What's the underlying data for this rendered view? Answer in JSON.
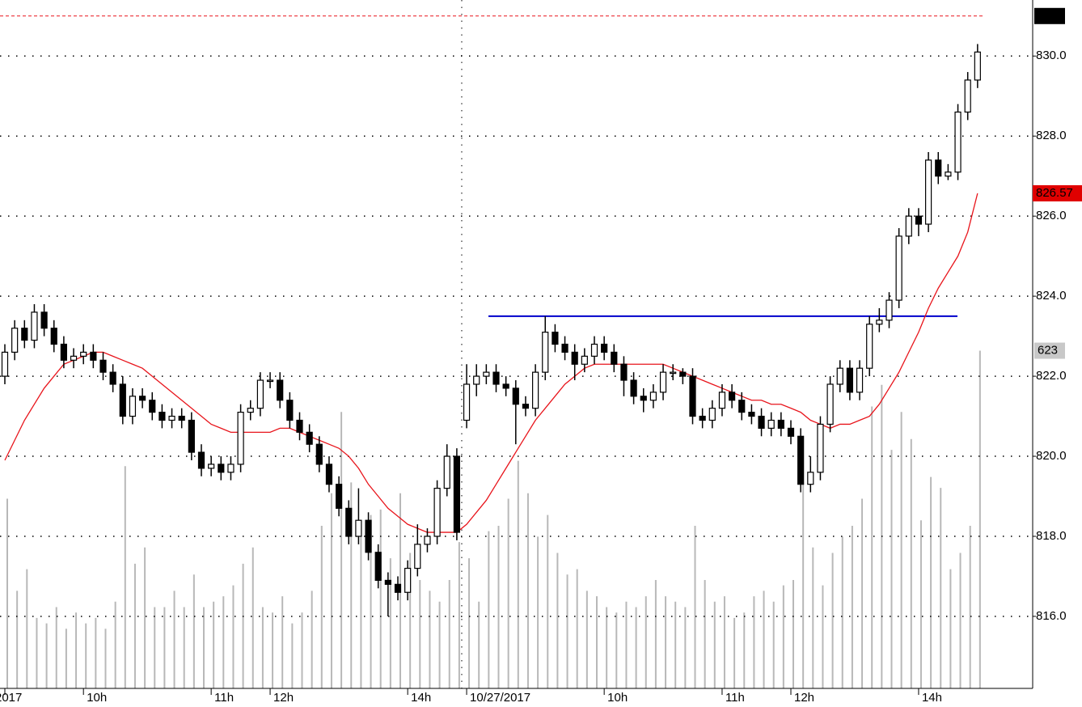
{
  "chart_data": {
    "type": "candlestick",
    "x": [
      "2017",
      null,
      null,
      null,
      null,
      null,
      null,
      null,
      "10h",
      null,
      null,
      null,
      null,
      null,
      null,
      null,
      null,
      null,
      null,
      null,
      null,
      "11h",
      null,
      null,
      null,
      null,
      null,
      "12h",
      null,
      null,
      null,
      null,
      null,
      null,
      null,
      null,
      null,
      null,
      null,
      null,
      null,
      "14h",
      null,
      null,
      null,
      null,
      null,
      "10/27/2017",
      null,
      null,
      null,
      null,
      null,
      null,
      null,
      null,
      null,
      null,
      null,
      null,
      null,
      "10h",
      null,
      null,
      null,
      null,
      null,
      null,
      null,
      null,
      null,
      null,
      null,
      "11h",
      null,
      null,
      null,
      null,
      null,
      null,
      "12h",
      null,
      null,
      null,
      null,
      null,
      null,
      null,
      null,
      null,
      null,
      null,
      null,
      "14h",
      null,
      null,
      null,
      null,
      null,
      null
    ],
    "open": [
      822.0,
      822.6,
      823.2,
      822.9,
      823.6,
      823.2,
      822.8,
      822.4,
      822.5,
      822.6,
      822.4,
      822.1,
      821.8,
      821.0,
      821.5,
      821.4,
      821.1,
      820.9,
      821.0,
      820.9,
      820.1,
      819.7,
      819.8,
      819.6,
      819.8,
      821.1,
      821.2,
      821.9,
      821.9,
      821.4,
      820.9,
      820.6,
      820.3,
      819.8,
      819.3,
      818.7,
      818.0,
      818.4,
      817.6,
      816.9,
      816.8,
      816.6,
      817.2,
      817.8,
      818.0,
      819.2,
      820.0,
      820.9,
      821.8,
      822.0,
      822.1,
      821.8,
      821.7,
      821.3,
      821.2,
      822.1,
      823.1,
      822.8,
      822.6,
      822.3,
      822.5,
      822.8,
      822.6,
      822.3,
      821.9,
      821.5,
      821.4,
      821.6,
      822.1,
      822.1,
      822.0,
      821.0,
      820.9,
      821.2,
      821.6,
      821.4,
      821.1,
      821.0,
      820.7,
      820.9,
      820.7,
      820.5,
      819.3,
      819.6,
      820.8,
      821.8,
      822.2,
      821.6,
      822.2,
      823.3,
      823.4,
      823.9,
      825.5,
      826.0,
      825.8,
      827.4,
      827.0,
      827.1,
      828.6,
      829.4
    ],
    "high": [
      822.8,
      823.4,
      823.4,
      823.8,
      823.8,
      823.4,
      823.0,
      822.7,
      822.8,
      822.8,
      822.6,
      822.3,
      822.0,
      821.7,
      821.7,
      821.6,
      821.3,
      821.2,
      821.2,
      821.1,
      820.3,
      820.0,
      820.0,
      820.0,
      821.3,
      821.4,
      822.1,
      822.1,
      822.1,
      821.6,
      821.1,
      820.8,
      820.5,
      820.0,
      819.5,
      818.9,
      819.2,
      818.6,
      817.8,
      817.1,
      817.0,
      817.4,
      818.3,
      818.2,
      819.4,
      820.3,
      820.2,
      822.3,
      822.3,
      822.3,
      822.3,
      822.0,
      821.9,
      821.5,
      822.3,
      823.5,
      823.3,
      823.0,
      822.8,
      822.7,
      823.0,
      823.0,
      822.8,
      822.5,
      822.1,
      821.7,
      821.8,
      822.3,
      822.3,
      822.2,
      822.2,
      821.2,
      821.4,
      821.8,
      821.8,
      821.6,
      821.3,
      821.2,
      821.1,
      821.1,
      820.9,
      820.7,
      820.0,
      821.0,
      822.0,
      822.4,
      822.4,
      822.4,
      823.5,
      823.7,
      824.1,
      825.7,
      826.2,
      826.2,
      827.6,
      827.6,
      827.3,
      828.8,
      829.6,
      830.3
    ],
    "low": [
      821.8,
      822.4,
      822.7,
      822.7,
      823.0,
      822.6,
      822.2,
      822.2,
      822.3,
      822.2,
      821.9,
      821.6,
      820.8,
      820.8,
      821.2,
      820.9,
      820.7,
      820.7,
      820.7,
      819.9,
      819.5,
      819.5,
      819.4,
      819.4,
      819.6,
      820.9,
      821.0,
      821.7,
      821.2,
      820.7,
      820.4,
      820.1,
      819.6,
      819.1,
      818.5,
      817.8,
      817.8,
      817.4,
      816.7,
      816.0,
      816.4,
      816.4,
      817.0,
      817.6,
      817.8,
      819.0,
      817.9,
      820.7,
      821.5,
      821.8,
      821.6,
      821.5,
      820.3,
      821.0,
      821.0,
      821.9,
      822.6,
      822.4,
      821.9,
      822.1,
      822.3,
      822.4,
      822.1,
      821.5,
      821.3,
      821.1,
      821.2,
      821.4,
      821.9,
      821.8,
      820.8,
      820.7,
      820.7,
      821.0,
      821.2,
      820.9,
      820.8,
      820.5,
      820.5,
      820.5,
      820.3,
      819.1,
      819.1,
      819.4,
      820.6,
      821.6,
      821.4,
      821.4,
      822.0,
      823.1,
      823.2,
      823.7,
      825.3,
      825.5,
      825.6,
      826.8,
      826.9,
      826.9,
      828.4,
      829.2
    ],
    "close": [
      822.6,
      823.2,
      822.9,
      823.6,
      823.2,
      822.8,
      822.4,
      822.5,
      822.6,
      822.4,
      822.1,
      821.8,
      821.0,
      821.5,
      821.4,
      821.1,
      820.9,
      821.0,
      820.9,
      820.1,
      819.7,
      819.8,
      819.6,
      819.8,
      821.1,
      821.2,
      821.9,
      821.9,
      821.4,
      820.9,
      820.6,
      820.3,
      819.8,
      819.3,
      818.7,
      818.0,
      818.4,
      817.6,
      816.9,
      816.8,
      816.6,
      817.2,
      817.8,
      818.0,
      819.2,
      820.0,
      818.1,
      821.8,
      822.0,
      822.1,
      821.8,
      821.7,
      821.3,
      821.2,
      822.1,
      823.1,
      822.8,
      822.6,
      822.3,
      822.5,
      822.8,
      822.6,
      822.3,
      821.9,
      821.5,
      821.4,
      821.6,
      822.1,
      822.1,
      822.0,
      821.0,
      820.9,
      821.2,
      821.6,
      821.4,
      821.1,
      821.0,
      820.7,
      820.9,
      820.7,
      820.5,
      819.3,
      819.6,
      820.8,
      821.8,
      822.2,
      821.6,
      822.2,
      823.3,
      823.4,
      823.9,
      825.5,
      826.0,
      825.8,
      827.4,
      827.0,
      827.1,
      828.6,
      829.4,
      830.1
    ],
    "up_color": "#ffffff",
    "down_color": "#000000",
    "moving_average": {
      "color": "#e8141b",
      "values": [
        819.9,
        820.4,
        820.9,
        821.3,
        821.7,
        822.0,
        822.3,
        822.4,
        822.5,
        822.6,
        822.6,
        822.5,
        822.4,
        822.3,
        822.2,
        822.0,
        821.8,
        821.6,
        821.4,
        821.2,
        821.0,
        820.8,
        820.7,
        820.6,
        820.6,
        820.6,
        820.6,
        820.6,
        820.7,
        820.7,
        820.6,
        820.5,
        820.4,
        820.3,
        820.2,
        820.0,
        819.7,
        819.3,
        819.0,
        818.7,
        818.5,
        818.3,
        818.2,
        818.1,
        818.1,
        818.1,
        818.1,
        818.3,
        818.6,
        818.9,
        819.3,
        819.7,
        820.1,
        820.5,
        820.9,
        821.2,
        821.5,
        821.8,
        822.0,
        822.2,
        822.3,
        822.3,
        822.3,
        822.3,
        822.3,
        822.3,
        822.3,
        822.3,
        822.2,
        822.1,
        822.0,
        821.9,
        821.8,
        821.7,
        821.6,
        821.5,
        821.4,
        821.4,
        821.3,
        821.3,
        821.2,
        821.1,
        820.9,
        820.8,
        820.7,
        820.8,
        820.8,
        820.9,
        821.0,
        821.3,
        821.7,
        822.1,
        822.6,
        823.1,
        823.7,
        824.2,
        824.6,
        825.0,
        825.6,
        826.57
      ]
    },
    "volume": {
      "color": "#b8b8b8",
      "values": [
        350,
        180,
        220,
        130,
        120,
        150,
        110,
        140,
        120,
        130,
        110,
        160,
        410,
        230,
        260,
        150,
        150,
        180,
        150,
        210,
        150,
        160,
        170,
        190,
        230,
        260,
        150,
        140,
        170,
        120,
        140,
        180,
        300,
        360,
        510,
        380,
        300,
        320,
        330,
        240,
        360,
        250,
        200,
        180,
        160,
        200,
        270,
        240,
        160,
        290,
        300,
        350,
        420,
        360,
        280,
        320,
        250,
        210,
        220,
        180,
        170,
        150,
        140,
        160,
        150,
        170,
        200,
        170,
        160,
        150,
        300,
        200,
        160,
        170,
        130,
        140,
        170,
        180,
        160,
        190,
        200,
        380,
        260,
        190,
        250,
        280,
        300,
        350,
        520,
        560,
        440,
        510,
        460,
        310,
        390,
        370,
        220,
        250,
        300,
        623
      ]
    },
    "ylim": [
      814.2,
      831.4
    ],
    "yticks": [
      {
        "value": 816,
        "label": "816.0"
      },
      {
        "value": 818,
        "label": "818.0"
      },
      {
        "value": 820,
        "label": "820.0"
      },
      {
        "value": 822,
        "label": "822.0"
      },
      {
        "value": 824,
        "label": "824.0"
      },
      {
        "value": 826,
        "label": "826.0"
      },
      {
        "value": 828,
        "label": "828.0"
      },
      {
        "value": 830,
        "label": "830.0"
      }
    ],
    "y2lim": [
      0,
      1270
    ],
    "reference_line": {
      "value": 831,
      "color": "#e8141b"
    },
    "trendline": {
      "value": 823.5,
      "color": "#0000cc"
    },
    "grid": true
  }
}
